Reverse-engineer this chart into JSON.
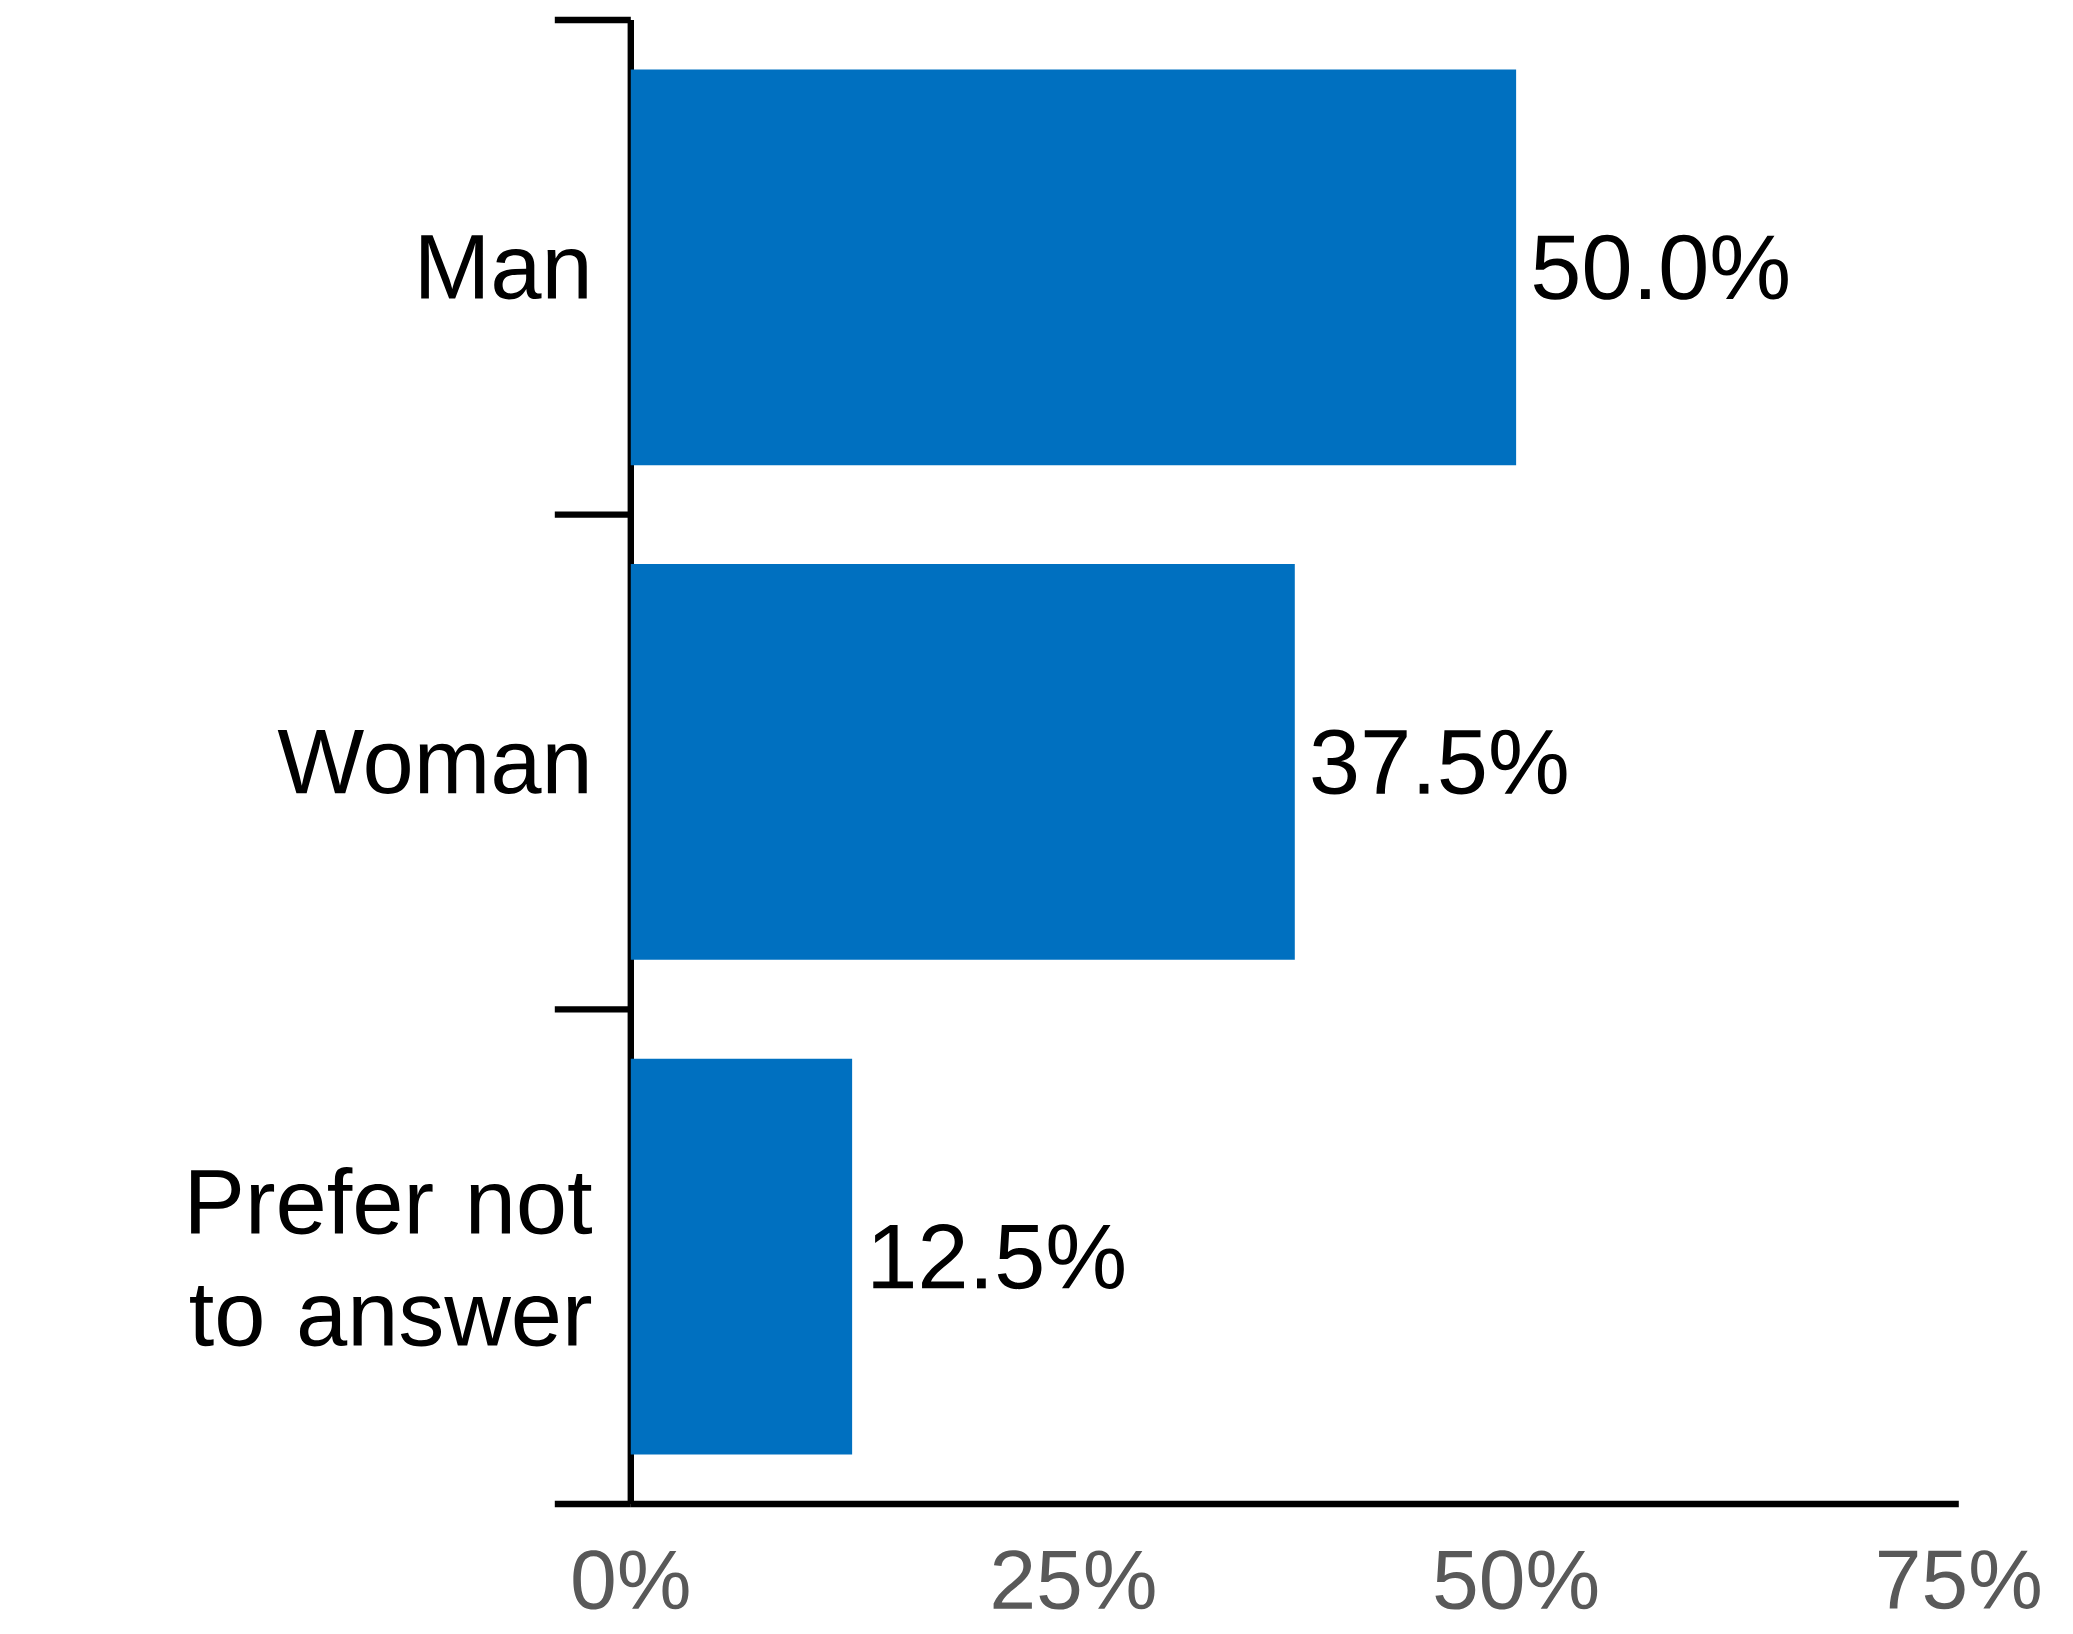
{
  "chart_data": {
    "type": "bar",
    "orientation": "horizontal",
    "categories": [
      "Man",
      "Woman",
      "Prefer not to answer"
    ],
    "values": [
      50,
      37.5,
      12.5
    ],
    "value_labels": [
      "50.0%",
      "37.5%",
      "12.5%"
    ],
    "color": "#0070c0",
    "xlim": [
      0,
      75
    ],
    "xticks": [
      {
        "value": 0,
        "label": "0%"
      },
      {
        "value": 25,
        "label": "25%"
      },
      {
        "value": 50,
        "label": "50%"
      },
      {
        "value": 75,
        "label": "75%"
      }
    ],
    "grid": false
  }
}
